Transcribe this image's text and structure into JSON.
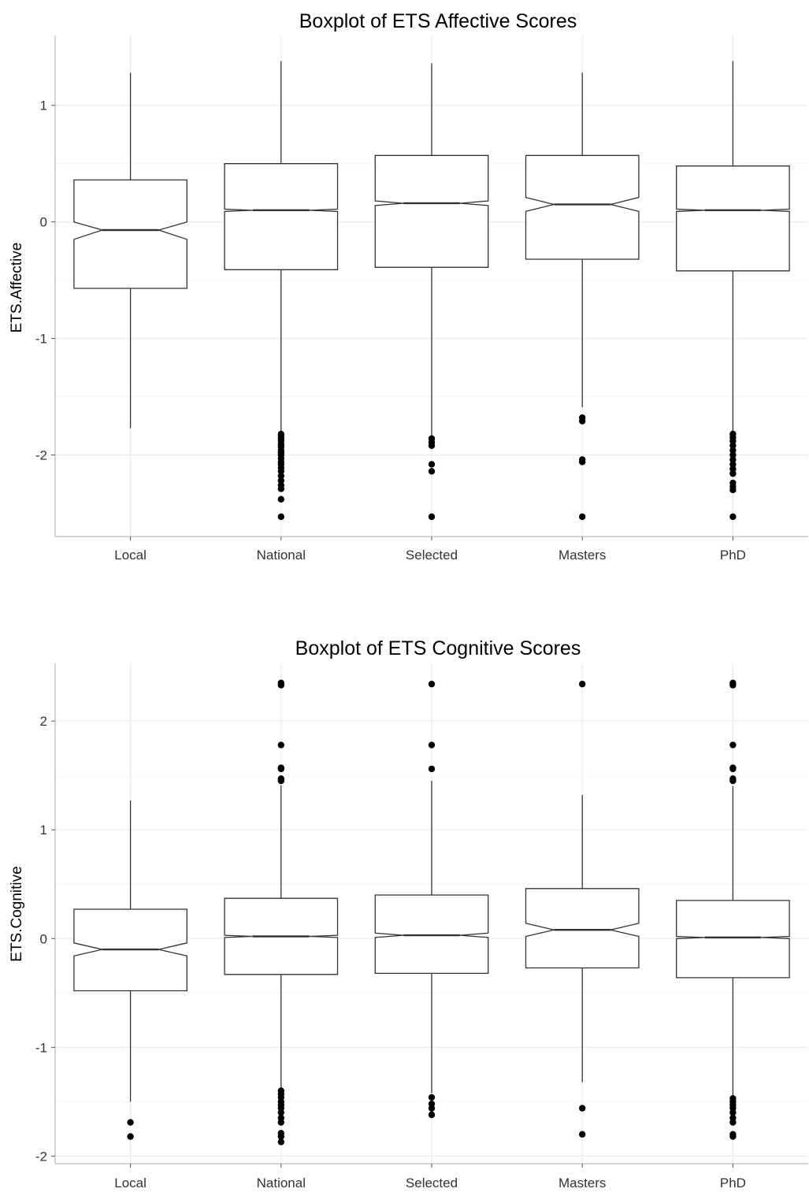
{
  "colors": {
    "background": "#ffffff",
    "grid": "#ebebeb",
    "box_stroke": "#333333",
    "outlier": "#000000",
    "text": "#000000"
  },
  "chart_data": [
    {
      "type": "boxplot",
      "notched": true,
      "title": "Boxplot of ETS Affective Scores",
      "xlabel": "",
      "ylabel": "ETS.Affective",
      "ylim": [
        -2.7,
        1.6
      ],
      "yticks": [
        1,
        0,
        -1,
        -2
      ],
      "ytick_labels": [
        "1",
        "0",
        "-1",
        "-2"
      ],
      "grid": true,
      "categories": [
        "Local",
        "National",
        "Selected",
        "Masters",
        "PhD"
      ],
      "boxes": [
        {
          "category": "Local",
          "whisker_low": -1.77,
          "q1": -0.57,
          "median": -0.07,
          "q3": 0.36,
          "whisker_high": 1.28,
          "notch_low": -0.15,
          "notch_high": 0.0,
          "outliers": []
        },
        {
          "category": "National",
          "whisker_low": -1.8,
          "q1": -0.41,
          "median": 0.1,
          "q3": 0.5,
          "whisker_high": 1.38,
          "notch_low": 0.09,
          "notch_high": 0.11,
          "outliers": [
            -1.82,
            -1.84,
            -1.86,
            -1.88,
            -1.91,
            -1.93,
            -1.96,
            -1.98,
            -2.0,
            -2.03,
            -2.06,
            -2.08,
            -2.11,
            -2.14,
            -2.18,
            -2.22,
            -2.26,
            -2.29,
            -2.38,
            -2.53
          ]
        },
        {
          "category": "Selected",
          "whisker_low": -1.84,
          "q1": -0.39,
          "median": 0.16,
          "q3": 0.57,
          "whisker_high": 1.36,
          "notch_low": 0.14,
          "notch_high": 0.18,
          "outliers": [
            -1.86,
            -1.89,
            -1.92,
            -2.08,
            -2.14,
            -2.53
          ]
        },
        {
          "category": "Masters",
          "whisker_low": -1.59,
          "q1": -0.32,
          "median": 0.15,
          "q3": 0.57,
          "whisker_high": 1.28,
          "notch_low": 0.09,
          "notch_high": 0.21,
          "outliers": [
            -1.68,
            -1.71,
            -2.04,
            -2.06,
            -2.53
          ]
        },
        {
          "category": "PhD",
          "whisker_low": -1.8,
          "q1": -0.42,
          "median": 0.1,
          "q3": 0.48,
          "whisker_high": 1.38,
          "notch_low": 0.09,
          "notch_high": 0.11,
          "outliers": [
            -1.82,
            -1.85,
            -1.88,
            -1.92,
            -1.96,
            -2.0,
            -2.04,
            -2.08,
            -2.12,
            -2.16,
            -2.24,
            -2.27,
            -2.3,
            -2.53
          ]
        }
      ]
    },
    {
      "type": "boxplot",
      "notched": true,
      "title": "Boxplot of ETS Cognitive Scores",
      "xlabel": "",
      "ylabel": "ETS.Cognitive",
      "ylim": [
        -2.07,
        2.53
      ],
      "yticks": [
        2,
        1,
        0,
        -1,
        -2
      ],
      "ytick_labels": [
        "2",
        "1",
        "0",
        "-1",
        "-2"
      ],
      "grid": true,
      "categories": [
        "Local",
        "National",
        "Selected",
        "Masters",
        "PhD"
      ],
      "boxes": [
        {
          "category": "Local",
          "whisker_low": -1.5,
          "q1": -0.48,
          "median": -0.1,
          "q3": 0.27,
          "whisker_high": 1.27,
          "notch_low": -0.16,
          "notch_high": -0.04,
          "outliers": [
            -1.69,
            -1.82
          ]
        },
        {
          "category": "National",
          "whisker_low": -1.38,
          "q1": -0.33,
          "median": 0.02,
          "q3": 0.37,
          "whisker_high": 1.41,
          "notch_low": 0.01,
          "notch_high": 0.03,
          "outliers": [
            -1.4,
            -1.43,
            -1.46,
            -1.5,
            -1.53,
            -1.56,
            -1.6,
            -1.65,
            -1.69,
            -1.79,
            -1.82,
            -1.87,
            1.45,
            1.47,
            1.56,
            1.57,
            1.78,
            2.33,
            2.35
          ]
        },
        {
          "category": "Selected",
          "whisker_low": -1.42,
          "q1": -0.32,
          "median": 0.03,
          "q3": 0.4,
          "whisker_high": 1.45,
          "notch_low": 0.01,
          "notch_high": 0.05,
          "outliers": [
            -1.46,
            -1.52,
            -1.56,
            -1.62,
            1.56,
            1.78,
            2.34
          ]
        },
        {
          "category": "Masters",
          "whisker_low": -1.32,
          "q1": -0.27,
          "median": 0.08,
          "q3": 0.46,
          "whisker_high": 1.32,
          "notch_low": 0.02,
          "notch_high": 0.14,
          "outliers": [
            -1.56,
            -1.8,
            2.34
          ]
        },
        {
          "category": "PhD",
          "whisker_low": -1.44,
          "q1": -0.36,
          "median": 0.01,
          "q3": 0.35,
          "whisker_high": 1.4,
          "notch_low": 0.0,
          "notch_high": 0.02,
          "outliers": [
            -1.47,
            -1.5,
            -1.53,
            -1.56,
            -1.6,
            -1.65,
            -1.69,
            -1.8,
            -1.82,
            1.45,
            1.47,
            1.56,
            1.57,
            1.78,
            2.33,
            2.35
          ]
        }
      ]
    }
  ]
}
